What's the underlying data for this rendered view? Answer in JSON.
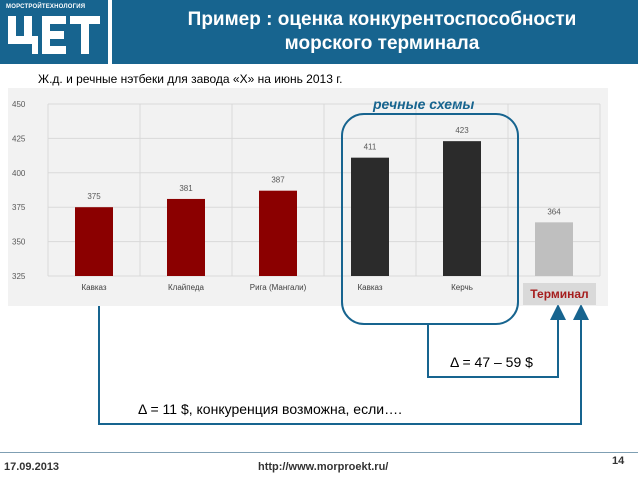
{
  "header": {
    "logo_caption": "МОРСТРОЙТЕХНОЛОГИЯ",
    "title": "Пример : оценка конкурентоспособности морского терминала",
    "brand_color": "#17648f"
  },
  "subtitle": "Ж.д. и речные нэтбеки для завода «Х» на июнь 2013 г.",
  "chart_data": {
    "type": "bar",
    "categories": [
      "Кавказ",
      "Клайпеда",
      "Рига (Мангали)",
      "Кавказ",
      "Керчь",
      ""
    ],
    "values": [
      375,
      381,
      387,
      411,
      423,
      364
    ],
    "data_labels": [
      "375",
      "381",
      "387",
      "411",
      "423",
      "364"
    ],
    "colors": [
      "#8b0000",
      "#8b0000",
      "#8b0000",
      "#2b2b2b",
      "#2b2b2b",
      "#bfbfbf"
    ],
    "ylim": [
      325,
      450
    ],
    "yticks": [
      325,
      350,
      375,
      400,
      425,
      450
    ],
    "grid": true,
    "legend": "none",
    "annotations": {
      "river_group": "речные схемы",
      "terminal_label": "Терминал"
    }
  },
  "deltas": {
    "river": "Δ = 47 – 59 $",
    "general": "Δ = 11 $, конкуренция возможна, если…."
  },
  "footer": {
    "date": "17.09.2013",
    "url": "http://www.morproekt.ru/",
    "page": "14"
  }
}
